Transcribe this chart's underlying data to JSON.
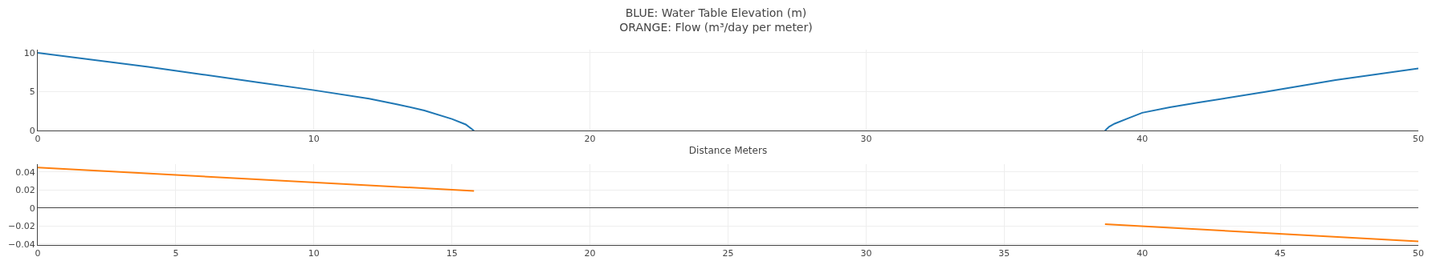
{
  "chart_data": [
    {
      "type": "line",
      "title": "BLUE: Water Table Elevation (m)\nORANGE: Flow (m³/day per meter)",
      "xlabel": "Distance Meters",
      "xlim": [
        0,
        50
      ],
      "xticks": [
        0,
        10,
        20,
        30,
        40,
        50
      ],
      "ylim": [
        0,
        10.4
      ],
      "yticks": [
        0,
        5,
        10
      ],
      "grid": true,
      "marker": "none",
      "line_style": "solid",
      "series": [
        {
          "color": "#1f77b4",
          "x": [
            0,
            2,
            4,
            6,
            8,
            10,
            12,
            13,
            14,
            15,
            15.5,
            15.8
          ],
          "values": [
            10,
            9.1,
            8.2,
            7.2,
            6.2,
            5.2,
            4.1,
            3.4,
            2.6,
            1.5,
            0.8,
            0
          ]
        },
        {
          "color": "#1f77b4",
          "x": [
            38.65,
            38.8,
            39,
            39.5,
            40,
            41,
            42,
            44.5,
            47,
            50
          ],
          "values": [
            0,
            0.5,
            0.9,
            1.6,
            2.3,
            3.0,
            3.6,
            5.0,
            6.5,
            8.0
          ]
        }
      ]
    },
    {
      "type": "line",
      "xlim": [
        0,
        50
      ],
      "xticks": [
        0,
        5,
        10,
        15,
        20,
        25,
        30,
        35,
        40,
        45,
        50
      ],
      "ylim": [
        -0.041,
        0.049
      ],
      "yticks": [
        -0.04,
        -0.02,
        0,
        0.02,
        0.04
      ],
      "grid": true,
      "marker": "none",
      "line_style": "solid",
      "series": [
        {
          "color": "#ff7f0e",
          "x": [
            0,
            15.8
          ],
          "values": [
            0.045,
            0.019
          ]
        },
        {
          "color": "#ff7f0e",
          "x": [
            38.65,
            50
          ],
          "values": [
            -0.018,
            -0.037
          ]
        }
      ]
    }
  ]
}
